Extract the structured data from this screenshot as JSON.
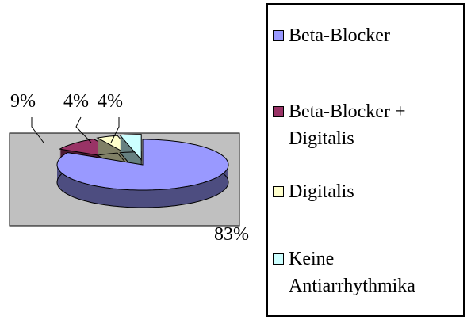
{
  "chart_data": {
    "type": "pie3d",
    "series": [
      {
        "name": "Beta-Blocker",
        "color": "#9999ff"
      },
      {
        "name": "Beta-Blocker + Digitalis",
        "color": "#993366"
      },
      {
        "name": "Digitalis",
        "color": "#ffffcc"
      },
      {
        "name": "Keine Antiarrhythmika",
        "color": "#ccffff"
      }
    ],
    "values": [
      83,
      9,
      4,
      4
    ],
    "value_labels": [
      "83%",
      "9%",
      "4%",
      "4%"
    ],
    "plot_background": "#c0c0c0"
  }
}
